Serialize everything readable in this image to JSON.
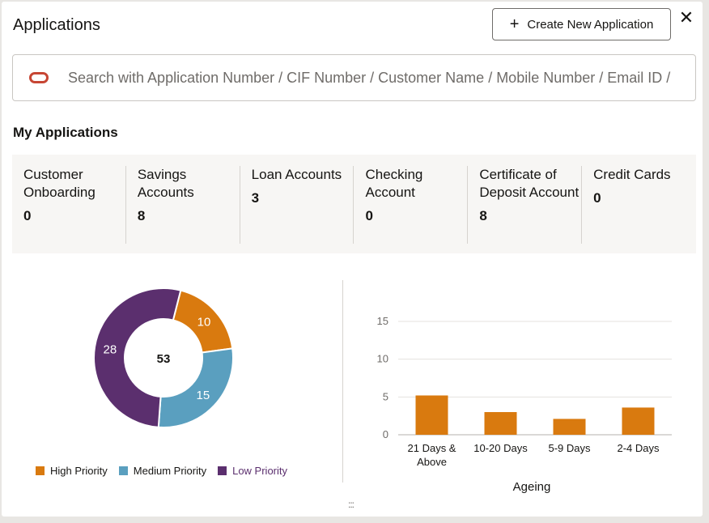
{
  "header": {
    "title": "Applications",
    "create_label": "Create New Application"
  },
  "search": {
    "placeholder": "Search with Application Number / CIF Number / Customer Name / Mobile Number / Email ID / "
  },
  "my_applications": {
    "title": "My Applications",
    "tiles": [
      {
        "label": "Customer Onboarding",
        "count": "0"
      },
      {
        "label": "Savings Accounts",
        "count": "8"
      },
      {
        "label": "Loan Accounts",
        "count": "3"
      },
      {
        "label": "Checking Account",
        "count": "0"
      },
      {
        "label": "Certificate of Deposit Account",
        "count": "8"
      },
      {
        "label": "Credit Cards",
        "count": "0"
      }
    ]
  },
  "colors": {
    "high": "#d97a0f",
    "medium": "#5a9fbf",
    "low": "#5b2f6e"
  },
  "chart_data": [
    {
      "type": "pie",
      "center_label": "53",
      "slices": [
        {
          "name": "High Priority",
          "value": 10
        },
        {
          "name": "Medium Priority",
          "value": 15
        },
        {
          "name": "Low Priority",
          "value": 28
        }
      ],
      "legend": [
        "High Priority",
        "Medium Priority",
        "Low Priority"
      ],
      "legend_position": "bottom"
    },
    {
      "type": "bar",
      "categories": [
        "21 Days & Above",
        "10-20 Days",
        "5-9 Days",
        "2-4 Days"
      ],
      "category_lines": [
        [
          "21 Days &",
          "Above"
        ],
        [
          "10-20 Days"
        ],
        [
          "5-9 Days"
        ],
        [
          "2-4 Days"
        ]
      ],
      "values": [
        5.2,
        3.0,
        2.1,
        3.6
      ],
      "xlabel": "Ageing",
      "ylabel": "",
      "ylim": [
        0,
        15
      ],
      "yticks": [
        0,
        5,
        10,
        15
      ],
      "grid": true
    }
  ]
}
